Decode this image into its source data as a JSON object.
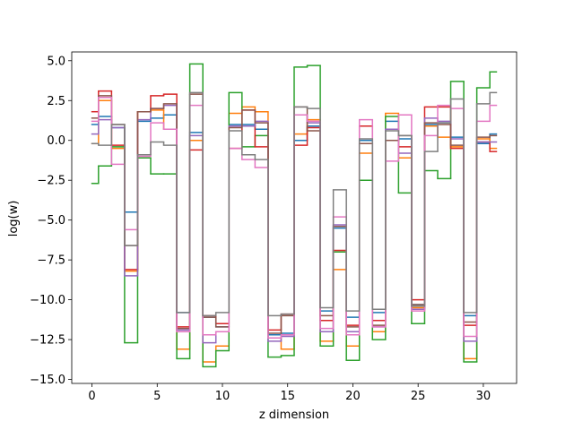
{
  "chart_data": {
    "type": "step",
    "xlabel": "z dimension",
    "ylabel": "log(w)",
    "x": [
      0,
      1,
      2,
      3,
      4,
      5,
      6,
      7,
      8,
      9,
      10,
      11,
      12,
      13,
      14,
      15,
      16,
      17,
      18,
      19,
      20,
      21,
      22,
      23,
      24,
      25,
      26,
      27,
      28,
      29,
      30,
      31
    ],
    "xlim": [
      -1.55,
      32.55
    ],
    "ylim": [
      -15.25,
      5.55
    ],
    "xticks": [
      0,
      5,
      10,
      15,
      20,
      25,
      30
    ],
    "yticks": [
      {
        "value": -15,
        "label": "−15.0"
      },
      {
        "value": -12.5,
        "label": "−12.5"
      },
      {
        "value": -10,
        "label": "−10.0"
      },
      {
        "value": -7.5,
        "label": "−7.5"
      },
      {
        "value": -5,
        "label": "−5.0"
      },
      {
        "value": -2.5,
        "label": "−2.5"
      },
      {
        "value": 0,
        "label": "0.0"
      },
      {
        "value": 2.5,
        "label": "2.5"
      },
      {
        "value": 5,
        "label": "5.0"
      }
    ],
    "series": [
      {
        "color": "#1f77b4",
        "values": [
          1.0,
          1.5,
          0.8,
          -4.5,
          1.2,
          1.4,
          1.6,
          -10.8,
          0.5,
          -11.1,
          -11.7,
          1.0,
          1.0,
          0.7,
          -12.2,
          -12.1,
          0.0,
          0.9,
          -10.7,
          -5.5,
          -11.1,
          0.0,
          -10.8,
          1.2,
          0.1,
          -10.3,
          1.0,
          1.1,
          0.2,
          -11.0,
          -0.2,
          0.4
        ]
      },
      {
        "color": "#ff7f0e",
        "values": [
          -0.2,
          2.5,
          -0.5,
          -8.2,
          1.8,
          1.9,
          0.7,
          -13.1,
          0.0,
          -13.9,
          -12.9,
          1.7,
          2.1,
          1.8,
          -12.4,
          -13.1,
          0.4,
          1.3,
          -12.6,
          -8.1,
          -12.9,
          -0.8,
          -12.0,
          1.7,
          -1.1,
          -10.5,
          0.9,
          0.2,
          -0.4,
          -13.7,
          0.1,
          -0.5
        ]
      },
      {
        "color": "#2ca02c",
        "values": [
          -2.7,
          -1.6,
          -0.4,
          -12.7,
          -1.1,
          -2.1,
          -2.1,
          -13.7,
          4.8,
          -14.2,
          -13.2,
          3.0,
          -0.4,
          0.3,
          -13.6,
          -13.5,
          4.6,
          4.7,
          -12.9,
          -7.0,
          -13.8,
          -2.5,
          -12.5,
          1.5,
          -3.3,
          -11.5,
          -1.9,
          -2.4,
          3.7,
          -13.9,
          3.3,
          4.3
        ]
      },
      {
        "color": "#d62728",
        "values": [
          1.8,
          3.1,
          -0.3,
          -8.1,
          1.8,
          2.8,
          2.9,
          -11.7,
          -0.6,
          -11.0,
          -11.5,
          -0.5,
          1.9,
          -0.4,
          -11.9,
          -10.9,
          -0.3,
          0.8,
          -11.3,
          -6.9,
          -11.6,
          0.9,
          -11.3,
          0.0,
          -0.4,
          -10.0,
          2.1,
          2.1,
          -0.5,
          -11.6,
          -0.1,
          -0.7
        ]
      },
      {
        "color": "#9467bd",
        "values": [
          0.4,
          1.3,
          0.8,
          -8.5,
          1.3,
          2.0,
          2.2,
          -11.9,
          0.3,
          -12.7,
          -12.0,
          0.9,
          0.9,
          1.2,
          -12.6,
          -12.3,
          1.6,
          1.1,
          -12.0,
          -5.3,
          -12.0,
          -0.2,
          -11.7,
          0.7,
          -0.8,
          -10.6,
          1.4,
          1.2,
          0.1,
          -12.6,
          -0.1,
          -0.1
        ]
      },
      {
        "color": "#8c564b",
        "values": [
          1.4,
          2.8,
          1.0,
          -6.6,
          1.8,
          2.0,
          2.3,
          -11.8,
          2.9,
          -11.1,
          -11.7,
          0.8,
          1.9,
          1.1,
          -12.1,
          -11.0,
          2.1,
          0.6,
          -11.0,
          -5.4,
          -11.7,
          -0.2,
          -11.6,
          0.0,
          0.3,
          -10.3,
          1.1,
          1.0,
          -0.3,
          -11.4,
          0.2,
          0.3
        ]
      },
      {
        "color": "#e377c2",
        "values": [
          1.2,
          2.7,
          -1.5,
          -5.6,
          -1.0,
          1.1,
          0.7,
          -12.0,
          2.2,
          -12.2,
          -12.0,
          -0.5,
          -1.2,
          -1.7,
          -12.4,
          -12.2,
          1.6,
          1.2,
          -11.8,
          -4.8,
          -12.2,
          1.3,
          -11.7,
          -1.3,
          1.6,
          -10.7,
          0.3,
          2.2,
          2.0,
          -12.3,
          1.2,
          2.2
        ]
      },
      {
        "color": "#7f7f7f",
        "values": [
          -0.2,
          -0.3,
          1.0,
          -6.6,
          -0.9,
          -0.1,
          -0.3,
          -10.8,
          3.0,
          -11.0,
          -10.8,
          0.6,
          -0.9,
          -1.2,
          -11.0,
          -10.9,
          2.1,
          2.0,
          -10.5,
          -3.1,
          -10.7,
          0.1,
          -10.6,
          0.6,
          0.3,
          -10.4,
          -0.7,
          1.1,
          2.6,
          -10.8,
          2.3,
          3.0
        ]
      }
    ]
  }
}
